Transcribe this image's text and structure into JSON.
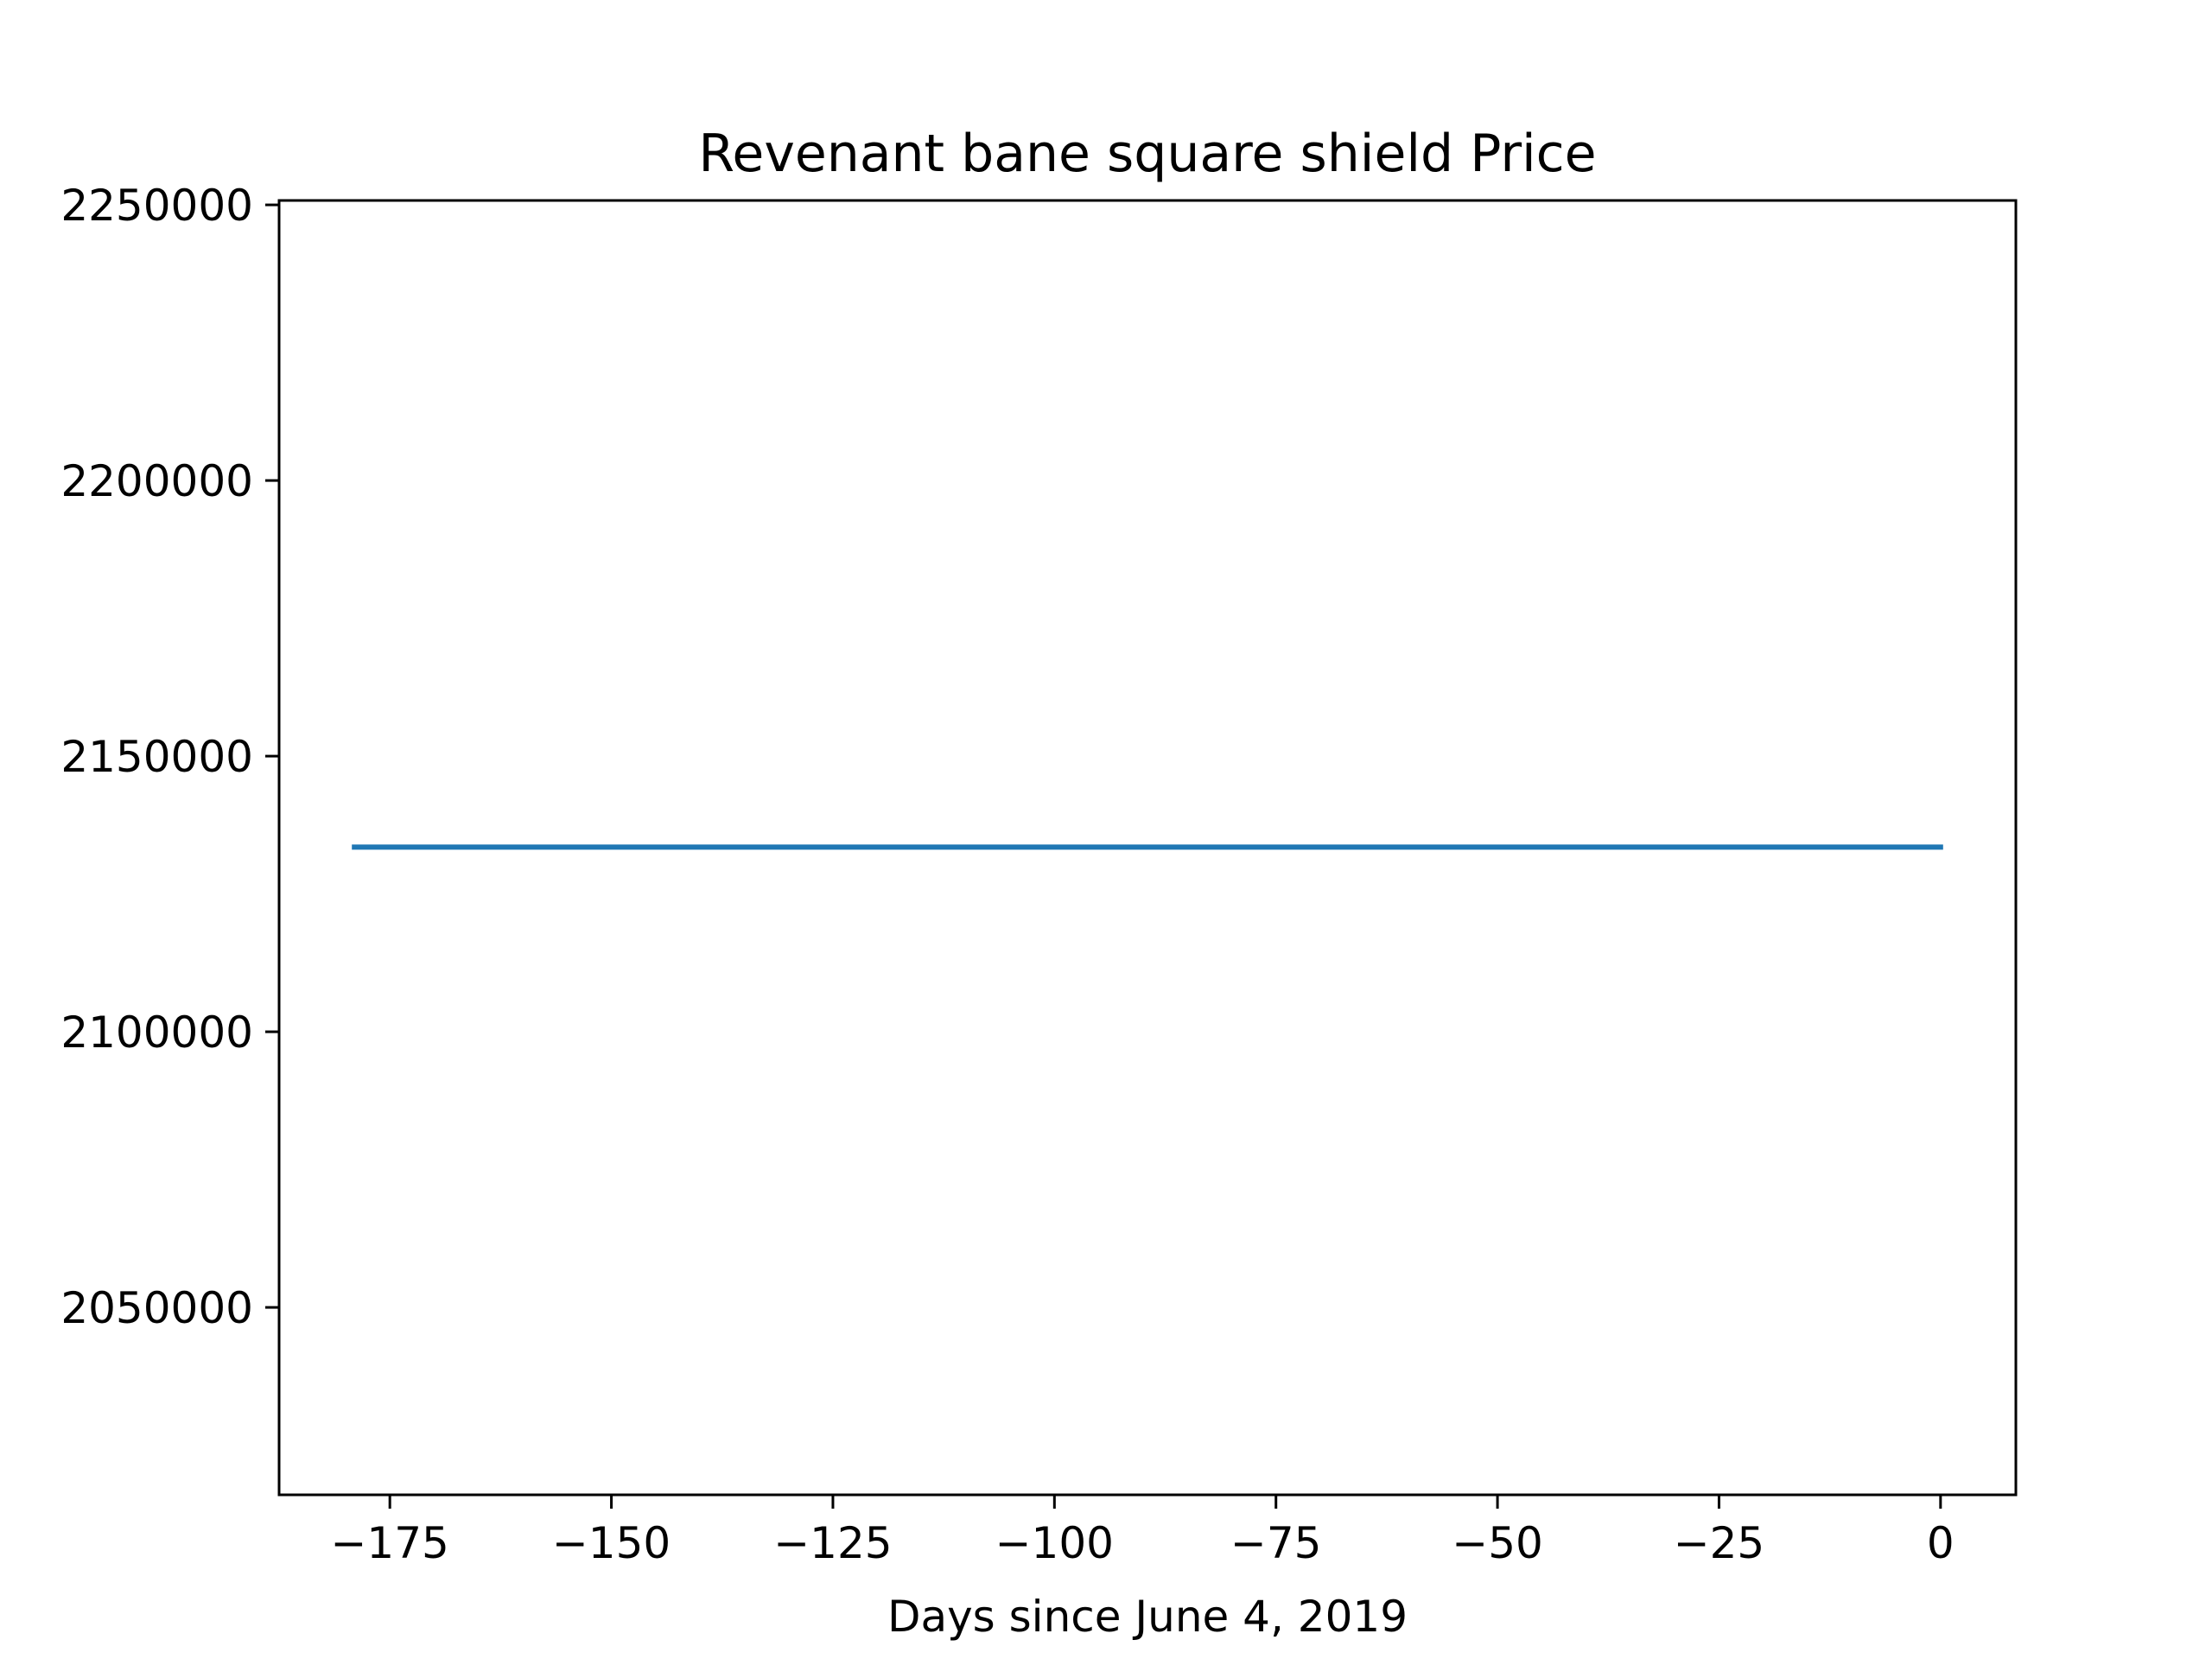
{
  "chart_data": {
    "type": "line",
    "title": "Revenant bane square shield Price",
    "xlabel": "Days since June 4, 2019",
    "ylabel": "",
    "xlim": [
      -187.5,
      8.5
    ],
    "ylim": [
      2016000,
      2250800
    ],
    "x_ticks": [
      -175,
      -150,
      -125,
      -100,
      -75,
      -50,
      -25,
      0
    ],
    "x_tick_labels": [
      "−175",
      "−150",
      "−125",
      "−100",
      "−75",
      "−50",
      "−25",
      "0"
    ],
    "y_ticks": [
      2050000,
      2100000,
      2150000,
      2200000,
      2250000
    ],
    "y_tick_labels": [
      "2050000",
      "2100000",
      "2150000",
      "2200000",
      "2250000"
    ],
    "grid": false,
    "series": [
      {
        "color": "#1f77b4",
        "x": [
          -179,
          0
        ],
        "y": [
          2133500,
          2133500
        ]
      }
    ]
  }
}
